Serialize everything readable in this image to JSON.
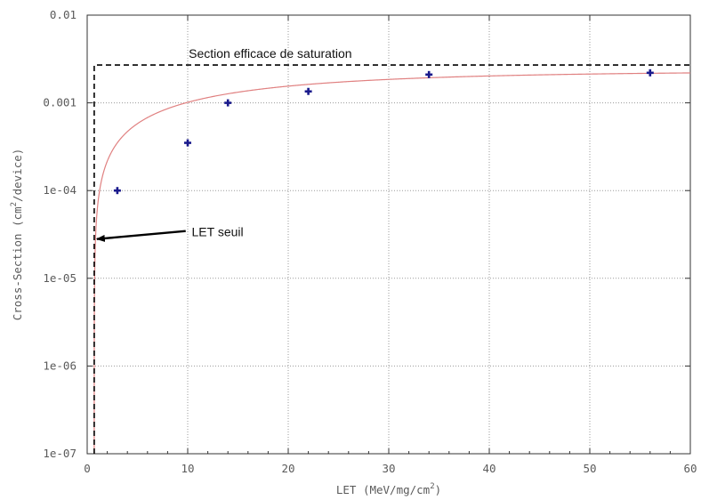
{
  "chart_data": {
    "type": "scatter",
    "x_axis": {
      "label_main": "LET (MeV/mg/cm",
      "label_sup": "2",
      "label_end": ")",
      "range": [
        0,
        60
      ],
      "ticks": [
        {
          "value": 0,
          "label": "0"
        },
        {
          "value": 10,
          "label": "10"
        },
        {
          "value": 20,
          "label": "20"
        },
        {
          "value": 30,
          "label": "30"
        },
        {
          "value": 40,
          "label": "40"
        },
        {
          "value": 50,
          "label": "50"
        },
        {
          "value": 60,
          "label": "60"
        }
      ]
    },
    "y_axis": {
      "label_main": "Cross-Section  (cm",
      "label_sup": "2",
      "label_end": "/device)",
      "scale": "log",
      "range": [
        1e-07,
        0.01
      ],
      "ticks": [
        {
          "value": 1e-07,
          "label": "1e-07"
        },
        {
          "value": 1e-06,
          "label": "1e-06"
        },
        {
          "value": 1e-05,
          "label": "1e-05"
        },
        {
          "value": 0.0001,
          "label": "1e-04"
        },
        {
          "value": 0.001,
          "label": "0.001"
        },
        {
          "value": 0.01,
          "label": "0.01"
        }
      ]
    },
    "grid": true,
    "points": [
      {
        "x": 3,
        "y": 0.0001
      },
      {
        "x": 10,
        "y": 0.00035
      },
      {
        "x": 14,
        "y": 0.001
      },
      {
        "x": 22,
        "y": 0.00135
      },
      {
        "x": 34,
        "y": 0.0021
      },
      {
        "x": 56,
        "y": 0.0022
      }
    ],
    "fit_curve": {
      "type": "weibull",
      "sigma_sat": 0.0023,
      "let_threshold": 0.7,
      "width": 17,
      "shape": 0.9,
      "color": "#e08080"
    },
    "annotations": {
      "saturation_label": "Section efficace de saturation",
      "saturation_level": 0.0027,
      "threshold_label": "LET seuil",
      "threshold_let": 0.7,
      "arrow_target_y": 2.8e-05
    },
    "colors": {
      "points": "#1a1a8c",
      "grid": "#9a9a9a",
      "frame": "#333333",
      "annotation_lines": "#000000"
    }
  }
}
